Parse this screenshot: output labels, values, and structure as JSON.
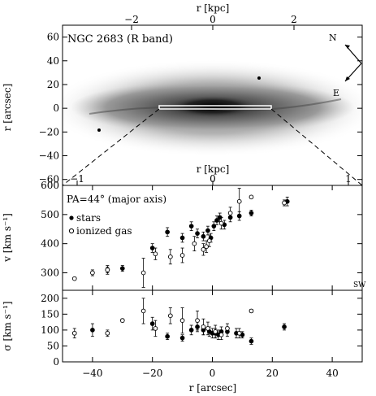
{
  "figure": {
    "top_axis_label": "r [kpc]",
    "top_ticks": [
      "−2",
      "0",
      "2"
    ],
    "image_title": "NGC 2683 (R band)",
    "image_ylabel": "r [arcsec]",
    "image_yticks": [
      "60",
      "40",
      "20",
      "0",
      "−20",
      "−40",
      "−60"
    ],
    "compass_n": "N",
    "compass_e": "E",
    "inner_axis_label": "r [kpc]",
    "inner_ticks": [
      "−1",
      "0",
      "1"
    ],
    "v_panel": {
      "annotation": "PA=44° (major axis)",
      "legend_stars": "stars",
      "legend_gas": "ionized gas",
      "ylabel": "v [km s⁻¹]",
      "yticks": [
        "600",
        "500",
        "400",
        "300"
      ],
      "corner": "SW"
    },
    "sigma_panel": {
      "ylabel": "σ [km s⁻¹]",
      "yticks": [
        "200",
        "150",
        "100",
        "50",
        "0"
      ]
    },
    "xlabel": "r [arcsec]",
    "xticks": [
      "−40",
      "−20",
      "0",
      "20",
      "40"
    ]
  },
  "chart_data": [
    {
      "type": "scatter",
      "title": "",
      "xlabel": "r [arcsec]",
      "ylabel": "v [km s⁻¹]",
      "xlim": [
        -50,
        50
      ],
      "ylim": [
        240,
        600
      ],
      "series": [
        {
          "name": "stars",
          "marker": "filled",
          "x": [
            -35,
            -30,
            -20,
            -15,
            -10,
            -7,
            -5,
            -3,
            -1.5,
            -0.5,
            0.5,
            1.5,
            2.5,
            4,
            6,
            9,
            13,
            25
          ],
          "y": [
            310,
            315,
            385,
            440,
            420,
            460,
            435,
            425,
            445,
            420,
            460,
            480,
            490,
            465,
            490,
            495,
            505,
            545
          ],
          "err": [
            10,
            10,
            15,
            15,
            15,
            15,
            15,
            15,
            15,
            15,
            15,
            15,
            15,
            15,
            15,
            15,
            10,
            15
          ]
        },
        {
          "name": "ionized gas",
          "marker": "open",
          "x": [
            -46,
            -40,
            -35,
            -23,
            -19,
            -14,
            -10,
            -6,
            -3,
            -2,
            -1,
            3,
            6,
            9,
            13,
            24
          ],
          "y": [
            280,
            300,
            310,
            300,
            365,
            355,
            360,
            400,
            380,
            390,
            410,
            470,
            505,
            545,
            560,
            540
          ],
          "err": [
            5,
            10,
            15,
            50,
            20,
            25,
            25,
            25,
            20,
            20,
            20,
            20,
            20,
            45,
            5,
            10
          ]
        }
      ]
    },
    {
      "type": "scatter",
      "title": "",
      "xlabel": "r [arcsec]",
      "ylabel": "σ [km s⁻¹]",
      "xlim": [
        -50,
        50
      ],
      "ylim": [
        0,
        225
      ],
      "series": [
        {
          "name": "stars",
          "marker": "filled",
          "x": [
            -40,
            -20,
            -15,
            -10,
            -7,
            -5,
            -3,
            -1,
            0,
            1,
            2,
            3,
            5,
            8,
            10,
            13,
            24
          ],
          "y": [
            100,
            120,
            80,
            75,
            100,
            110,
            100,
            95,
            90,
            90,
            85,
            95,
            95,
            90,
            85,
            65,
            110
          ],
          "err": [
            20,
            20,
            10,
            10,
            15,
            15,
            15,
            15,
            15,
            15,
            15,
            15,
            15,
            15,
            10,
            10,
            10
          ]
        },
        {
          "name": "ionized gas",
          "marker": "open",
          "x": [
            -46,
            -35,
            -30,
            -23,
            -19,
            -14,
            -10,
            -5,
            -3,
            -1.5,
            1,
            3,
            5,
            9,
            13
          ],
          "y": [
            90,
            90,
            130,
            160,
            105,
            145,
            130,
            130,
            110,
            105,
            95,
            85,
            105,
            90,
            160
          ],
          "err": [
            15,
            10,
            5,
            40,
            25,
            25,
            40,
            30,
            25,
            20,
            20,
            15,
            15,
            15,
            5
          ]
        }
      ]
    }
  ]
}
